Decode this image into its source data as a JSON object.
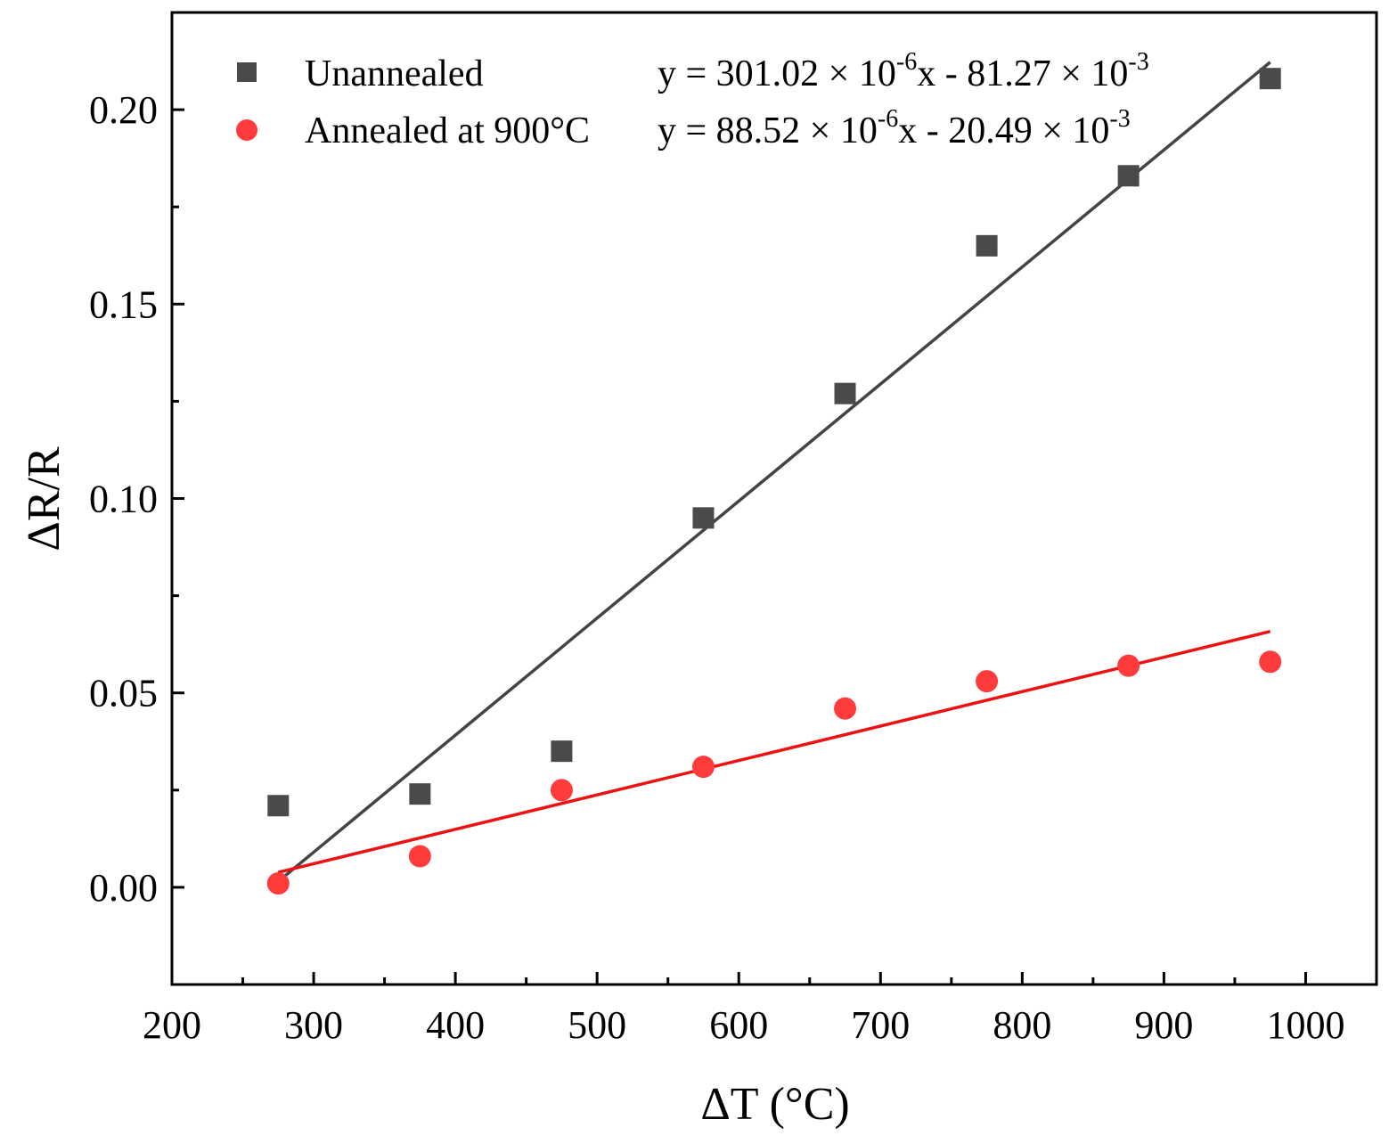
{
  "chart_data": {
    "type": "scatter",
    "title": "",
    "xlabel": "ΔT (°C)",
    "ylabel": "ΔR/R",
    "xlim": [
      200,
      1050
    ],
    "ylim": [
      -0.025,
      0.225
    ],
    "xticks": [
      200,
      300,
      400,
      500,
      600,
      700,
      800,
      900,
      1000
    ],
    "xtick_labels": [
      "200",
      "300",
      "400",
      "500",
      "600",
      "700",
      "800",
      "900",
      "1000"
    ],
    "yticks": [
      0.0,
      0.05,
      0.1,
      0.15,
      0.2
    ],
    "ytick_labels": [
      "0.00",
      "0.05",
      "0.10",
      "0.15",
      "0.20"
    ],
    "grid": false,
    "legend_position": "top-left",
    "series": [
      {
        "name": "Unannealed",
        "marker": "square",
        "color": "#4a4a4a",
        "x": [
          275,
          375,
          475,
          575,
          675,
          775,
          875,
          975
        ],
        "y": [
          0.021,
          0.024,
          0.035,
          0.095,
          0.127,
          0.165,
          0.183,
          0.208
        ],
        "fit": {
          "slope": 0.00030102,
          "intercept": -0.08127,
          "x_range": [
            275,
            975
          ],
          "equation": {
            "prefix": "y = 301.02 × 10",
            "exp1": "-6",
            "middle": "x - 81.27 × 10",
            "exp2": "-3"
          }
        }
      },
      {
        "name": "Annealed at 900°C",
        "marker": "circle",
        "color": "#ff3b3b",
        "x": [
          275,
          375,
          475,
          575,
          675,
          775,
          875,
          975
        ],
        "y": [
          0.001,
          0.008,
          0.025,
          0.031,
          0.046,
          0.053,
          0.057,
          0.058
        ],
        "fit": {
          "slope": 8.852e-05,
          "intercept": -0.02049,
          "x_range": [
            275,
            975
          ],
          "equation": {
            "prefix": "y = 88.52 × 10",
            "exp1": "-6",
            "middle": "x - 20.49 × 10",
            "exp2": "-3"
          }
        }
      }
    ]
  },
  "colors": {
    "unannealed": "#4a4a4a",
    "unannealed_line": "#444444",
    "annealed": "#ff3b3b",
    "annealed_line": "#ee1111",
    "axis": "#000000"
  }
}
